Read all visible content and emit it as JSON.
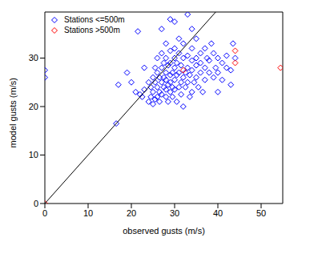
{
  "chart_data": {
    "type": "scatter",
    "x_label": "observed gusts (m/s)",
    "y_label": "model gusts (m/s)",
    "xlim": [
      0,
      55
    ],
    "ylim": [
      0,
      39.5
    ],
    "xticks": [
      0,
      10,
      20,
      30,
      40,
      50
    ],
    "yticks": [
      0,
      10,
      20,
      30
    ],
    "legend": "upper left",
    "marker": "diamond",
    "series": [
      {
        "name": "Stations <=500m",
        "color": "#0000ff",
        "marker": "diamond",
        "x": [
          0,
          0,
          16.5,
          17,
          19,
          20,
          21,
          21.5,
          22,
          22.5,
          23,
          23,
          24,
          24,
          24.5,
          24.5,
          25,
          25,
          25,
          25.5,
          25.5,
          25.5,
          26,
          26,
          26,
          26,
          26.5,
          26.5,
          26.5,
          27,
          27,
          27,
          27,
          27,
          27.5,
          27.5,
          27.5,
          28,
          28,
          28,
          28,
          28,
          28,
          28.5,
          28.5,
          28.5,
          29,
          29,
          29,
          29,
          29,
          29,
          29.5,
          29.5,
          29.5,
          30,
          30,
          30,
          30,
          30,
          30,
          30.5,
          30.5,
          30.5,
          31,
          31,
          31,
          31,
          31.5,
          31.5,
          31.5,
          32,
          32,
          32,
          32,
          32.5,
          32.5,
          33,
          33,
          33,
          33,
          33.5,
          33.5,
          34,
          34,
          34,
          34,
          34,
          34.5,
          35,
          35,
          35,
          35,
          35.5,
          36,
          36,
          36,
          36.5,
          37,
          37,
          37,
          37.5,
          38,
          38,
          38.5,
          39,
          39,
          39.5,
          40,
          40,
          40,
          41,
          41,
          42,
          42,
          43,
          43,
          43.5,
          44
        ],
        "values": [
          27.5,
          26,
          16.5,
          24.5,
          27,
          25,
          23,
          35.5,
          22.5,
          22,
          23.5,
          28,
          21,
          25,
          22,
          24,
          20.5,
          23,
          26,
          21.5,
          25,
          28,
          22,
          24,
          27,
          30,
          21,
          23,
          26,
          22.5,
          25,
          28,
          31,
          36,
          24,
          26,
          29,
          22,
          23.5,
          25.5,
          27,
          30,
          33,
          21,
          24.5,
          28.5,
          23,
          25,
          26.5,
          29,
          31.5,
          38,
          22,
          24,
          27,
          23.5,
          25.5,
          28,
          30,
          32,
          37.5,
          21,
          26.5,
          29,
          24,
          27,
          31,
          34,
          22.5,
          25,
          28.5,
          20,
          26,
          30,
          33,
          24,
          27,
          25,
          28,
          30.5,
          39,
          22,
          26.5,
          23,
          27.5,
          29.5,
          32,
          36,
          25,
          26,
          28.5,
          30,
          34,
          24,
          27,
          29,
          31,
          23,
          25.5,
          28,
          32,
          30,
          27,
          29.5,
          33,
          26,
          31,
          28,
          23,
          27,
          30,
          25.5,
          29,
          28,
          30.5,
          24.5,
          27.5,
          33,
          30
        ]
      },
      {
        "name": "Stations >500m",
        "color": "#ff0000",
        "marker": "diamond",
        "x": [
          0,
          32,
          44,
          44,
          54.5
        ],
        "values": [
          0,
          27.5,
          31.5,
          29,
          28
        ]
      },
      {
        "type": "line",
        "color": "#000000",
        "line_style": "solid",
        "x": [
          0,
          39.5
        ],
        "values": [
          0,
          39.5
        ]
      }
    ]
  }
}
